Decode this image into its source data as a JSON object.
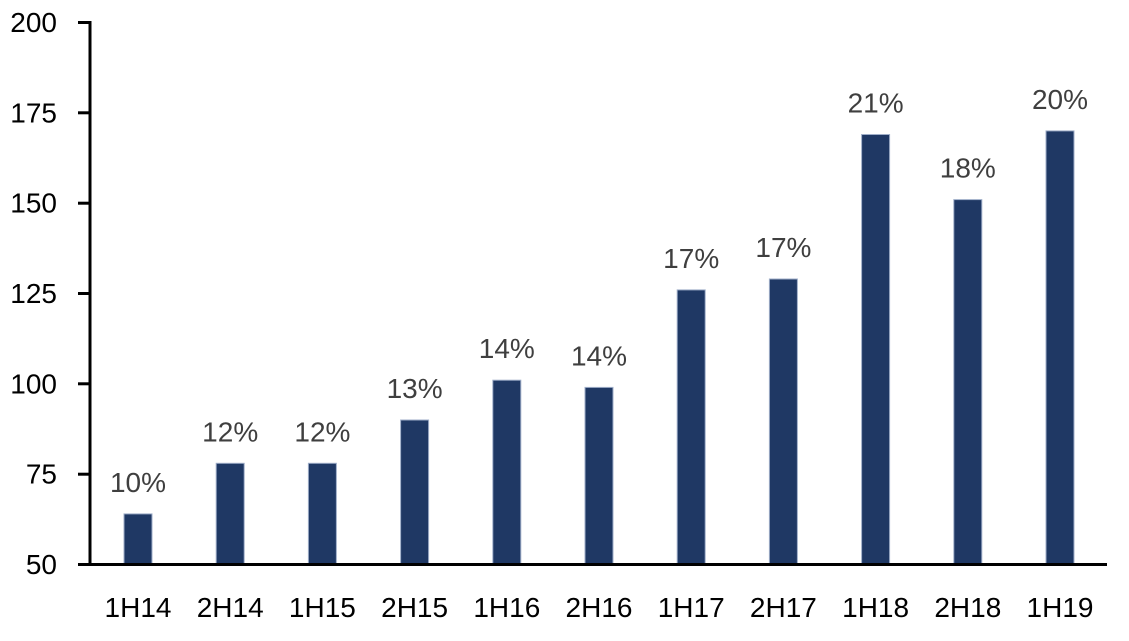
{
  "chart_data": {
    "type": "bar",
    "title": "",
    "xlabel": "",
    "ylabel": "",
    "categories": [
      "1H14",
      "2H14",
      "1H15",
      "2H15",
      "1H16",
      "2H16",
      "1H17",
      "2H17",
      "1H18",
      "2H18",
      "1H19"
    ],
    "values": [
      64,
      78,
      78,
      90,
      101,
      99,
      126,
      129,
      169,
      151,
      170
    ],
    "bar_labels": [
      "10%",
      "12%",
      "12%",
      "13%",
      "14%",
      "14%",
      "17%",
      "17%",
      "21%",
      "18%",
      "20%"
    ],
    "ylim": [
      50,
      200
    ],
    "yticks": [
      200,
      175,
      150,
      125,
      100,
      75,
      50
    ],
    "grid": false,
    "legend": false,
    "colors": {
      "bar_fill": "#1F3864",
      "bar_border": "#9FAEC9",
      "data_label": "#3F3F3F",
      "axis": "#000000",
      "tick_label": "#000000",
      "background": "#FFFFFF"
    }
  }
}
